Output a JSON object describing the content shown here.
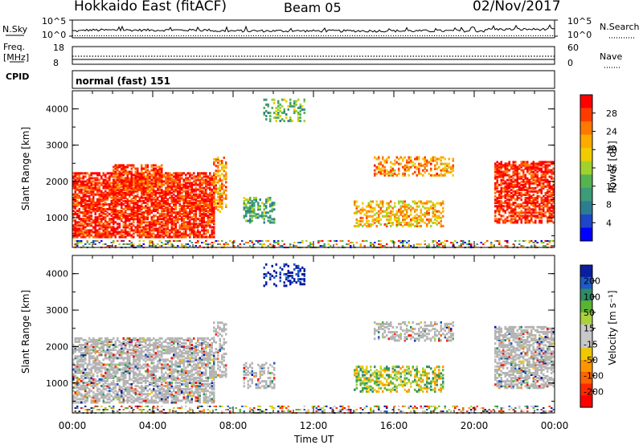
{
  "header": {
    "title": "Hokkaido East (fitACF)",
    "beam": "Beam 05",
    "date": "02/Nov/2017"
  },
  "top_panels": {
    "nsky_label": "N.Sky",
    "nsky_ticks": [
      "10^5",
      "10^0"
    ],
    "nsearch_label": "N.Search",
    "nsearch_ticks": [
      "10^5",
      "10^0"
    ],
    "freq_label_line1": "Freq.",
    "freq_label_line2": "[MHz]",
    "freq_ticks": [
      "18",
      "8"
    ],
    "nave_label": "Nave",
    "nave_ticks": [
      "60",
      "0"
    ],
    "cpid_label": "CPID",
    "cpid_value": "normal (fast) 151"
  },
  "power_panel": {
    "ylabel": "Slant Range [km]",
    "yticks": [
      "4000",
      "3000",
      "2000",
      "1000"
    ],
    "colorbar_label": "Power [dB]",
    "colorbar_ticks": [
      "28",
      "24",
      "20",
      "16",
      "12",
      "8",
      "4"
    ],
    "colors": [
      "#ff0000",
      "#ff3c00",
      "#ff7800",
      "#ffaa00",
      "#f0cd00",
      "#a0d22d",
      "#55b450",
      "#3c9b78",
      "#2d7d91",
      "#1e46c8",
      "#0000ff"
    ]
  },
  "velocity_panel": {
    "ylabel": "Slant Range [km]",
    "yticks": [
      "4000",
      "3000",
      "2000",
      "1000"
    ],
    "colorbar_label": "Velocity [m s⁻¹]",
    "colorbar_ticks": [
      "200",
      "100",
      "50",
      "15",
      "-15",
      "-50",
      "-100",
      "-200"
    ],
    "colors": [
      "#0a1ea0",
      "#1e5ac8",
      "#2d8c64",
      "#5ab432",
      "#aad23c",
      "#c8c8c8",
      "#c8c8c8",
      "#f0c800",
      "#ff9600",
      "#ff6400",
      "#ff2800",
      "#ff0000"
    ],
    "ground_scatter_color": "#b4b4b4"
  },
  "xaxis": {
    "ticks": [
      "00:00",
      "04:00",
      "08:00",
      "12:00",
      "16:00",
      "20:00",
      "00:00"
    ],
    "label": "Time UT"
  },
  "chart_data": [
    {
      "type": "heatmap",
      "title": "Power",
      "xlabel": "Time UT",
      "ylabel": "Slant Range [km]",
      "x_range_hours": [
        0,
        24
      ],
      "y_range_km": [
        180,
        4500
      ],
      "colorbar": {
        "label": "Power [dB]",
        "range": [
          0,
          32
        ],
        "ticks": [
          4,
          8,
          12,
          16,
          20,
          24,
          28
        ]
      },
      "regions": [
        {
          "t": [
            0.0,
            7.0
          ],
          "r": [
            500,
            2300
          ],
          "power_db": 27,
          "density": 0.72
        },
        {
          "t": [
            2.0,
            4.5
          ],
          "r": [
            1800,
            2500
          ],
          "power_db": 26,
          "density": 0.6
        },
        {
          "t": [
            7.0,
            7.6
          ],
          "r": [
            1200,
            2700
          ],
          "power_db": 22,
          "density": 0.5
        },
        {
          "t": [
            8.5,
            10.0
          ],
          "r": [
            900,
            1600
          ],
          "power_db": 13,
          "density": 0.4
        },
        {
          "t": [
            9.5,
            11.5
          ],
          "r": [
            3700,
            4300
          ],
          "power_db": 14,
          "density": 0.3
        },
        {
          "t": [
            15.0,
            19.0
          ],
          "r": [
            2200,
            2700
          ],
          "power_db": 22,
          "density": 0.45
        },
        {
          "t": [
            14.0,
            18.5
          ],
          "r": [
            800,
            1500
          ],
          "power_db": 20,
          "density": 0.45
        },
        {
          "t": [
            21.0,
            24.0
          ],
          "r": [
            900,
            2600
          ],
          "power_db": 27,
          "density": 0.65
        }
      ]
    },
    {
      "type": "heatmap",
      "title": "Velocity",
      "xlabel": "Time UT",
      "ylabel": "Slant Range [km]",
      "x_range_hours": [
        0,
        24
      ],
      "y_range_km": [
        180,
        4500
      ],
      "colorbar": {
        "label": "Velocity [m s⁻¹]",
        "range": [
          -250,
          250
        ],
        "ticks": [
          200,
          100,
          50,
          15,
          -15,
          -50,
          -100,
          -200
        ]
      },
      "regions": [
        {
          "t": [
            0.0,
            7.0
          ],
          "r": [
            500,
            2300
          ],
          "velocity": 0,
          "density": 0.62
        },
        {
          "t": [
            7.0,
            7.6
          ],
          "r": [
            1200,
            2700
          ],
          "velocity": 0,
          "density": 0.4
        },
        {
          "t": [
            8.5,
            10.0
          ],
          "r": [
            900,
            1600
          ],
          "velocity": 0,
          "density": 0.35
        },
        {
          "t": [
            9.5,
            11.5
          ],
          "r": [
            3700,
            4300
          ],
          "velocity": 230,
          "density": 0.35
        },
        {
          "t": [
            15.0,
            19.0
          ],
          "r": [
            2200,
            2700
          ],
          "velocity": 0,
          "density": 0.45
        },
        {
          "t": [
            14.0,
            18.5
          ],
          "r": [
            800,
            1500
          ],
          "velocity": 40,
          "density": 0.45
        },
        {
          "t": [
            21.0,
            24.0
          ],
          "r": [
            900,
            2600
          ],
          "velocity": 0,
          "density": 0.6
        }
      ]
    }
  ]
}
